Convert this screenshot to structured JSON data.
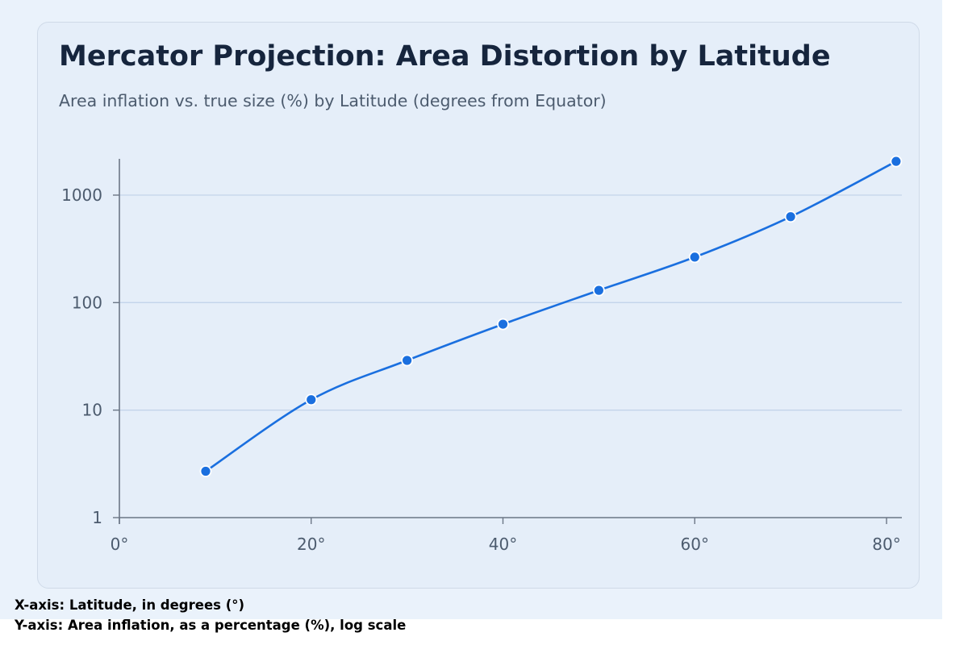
{
  "chart_data": {
    "type": "line",
    "title": "Mercator Projection: Area Distortion by Latitude",
    "subtitle": "Area inflation vs. true size (%) by Latitude (degrees from Equator)",
    "x_axis": {
      "ticks": [
        0,
        20,
        40,
        60,
        80
      ],
      "tick_labels": [
        "0°",
        "20°",
        "40°",
        "60°",
        "80°"
      ],
      "range": [
        0,
        80
      ]
    },
    "y_axis": {
      "scale": "log",
      "ticks": [
        1,
        10,
        100,
        1000
      ],
      "tick_labels": [
        "1",
        "10",
        "100",
        "1000"
      ],
      "range": [
        1,
        2100
      ]
    },
    "series": [
      {
        "x": [
          9,
          20,
          30,
          40,
          50,
          60,
          70,
          81
        ],
        "y": [
          2.7,
          12.5,
          29,
          63,
          130,
          265,
          630,
          2060
        ]
      }
    ],
    "grid": true,
    "color": "#1a6fdf"
  },
  "footnotes": {
    "x_axis": "X-axis: Latitude, in degrees (°)",
    "y_axis": "Y-axis: Area inflation, as a percentage (%), log scale"
  }
}
